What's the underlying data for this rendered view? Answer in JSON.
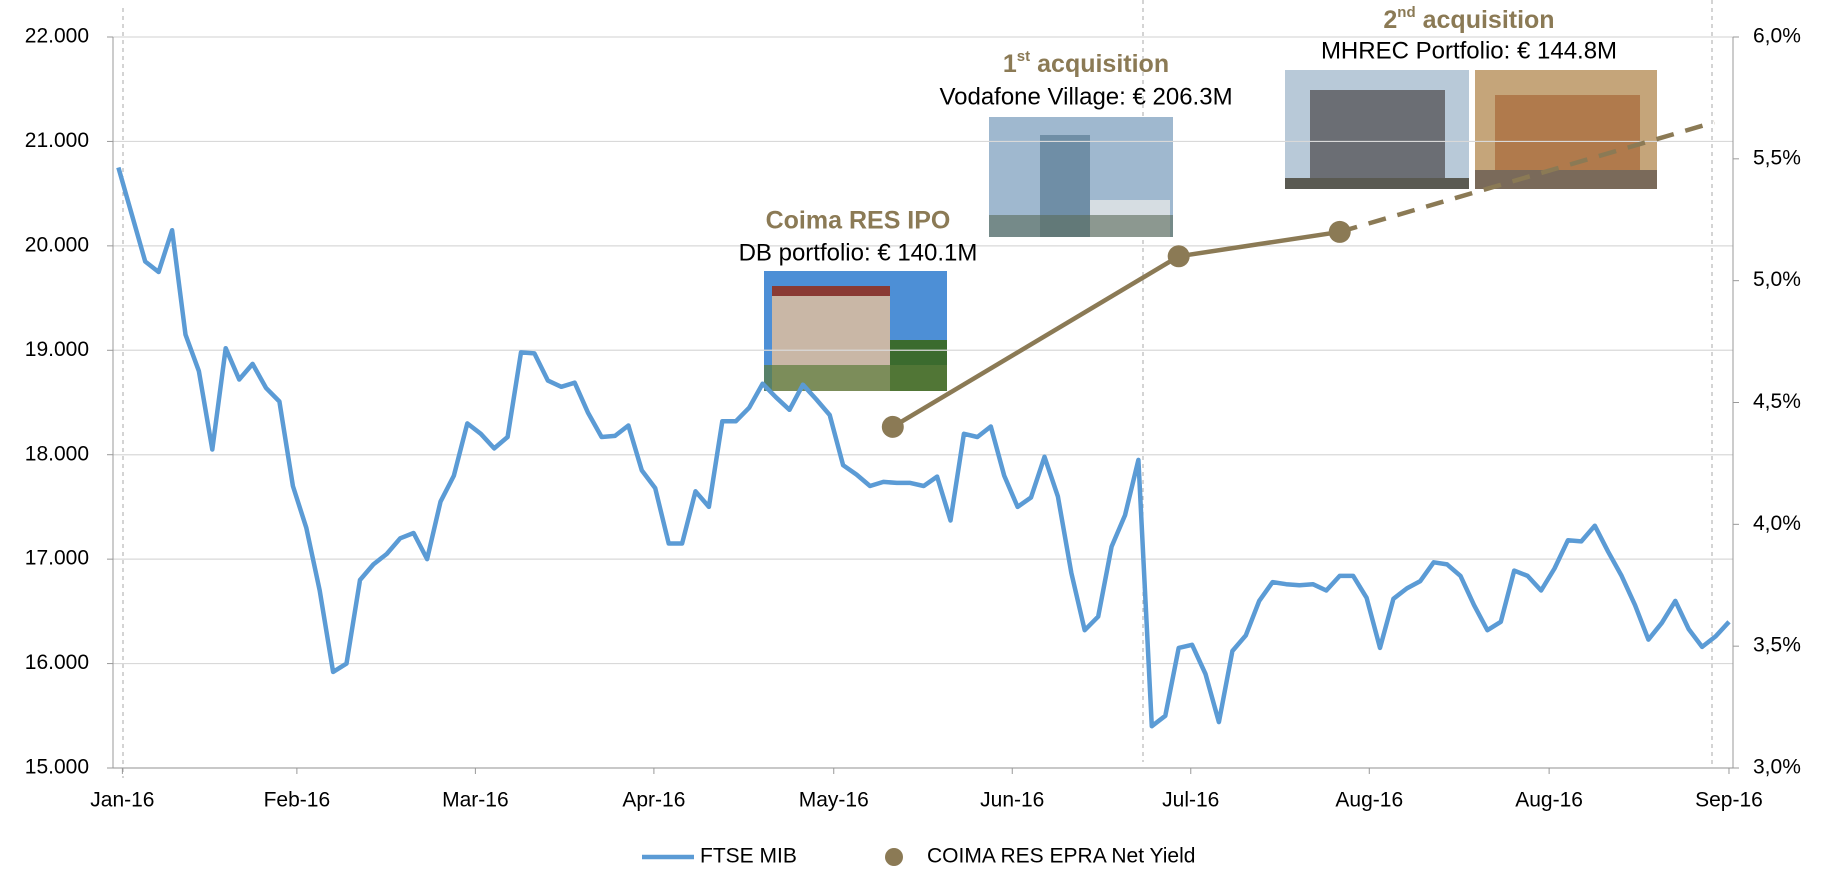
{
  "chart_data": {
    "type": "line",
    "x": [
      0,
      1,
      2,
      3,
      4,
      5,
      6,
      7,
      8,
      9,
      10,
      11,
      12,
      13,
      14,
      15,
      16,
      17,
      18,
      19,
      20,
      21,
      22,
      23,
      24,
      25,
      26,
      27,
      28,
      29,
      30,
      31,
      32,
      33,
      34,
      35,
      36,
      37,
      38,
      39,
      40,
      41,
      42,
      43,
      44,
      45,
      46,
      47,
      48,
      49,
      50,
      51,
      52,
      53,
      54,
      55,
      56,
      57,
      58,
      59,
      60,
      61,
      62,
      63,
      64,
      65,
      66,
      67,
      68,
      69,
      70,
      71,
      72,
      73,
      74,
      75,
      76,
      77,
      78,
      79,
      80,
      81,
      82,
      83,
      84,
      85,
      86,
      87,
      88,
      89,
      90,
      91,
      92,
      93,
      94,
      95,
      96,
      97,
      98,
      99,
      100,
      101,
      102,
      103,
      104,
      105,
      106,
      107,
      108,
      109,
      110,
      111,
      112,
      113,
      114,
      115,
      116,
      117,
      118,
      119,
      120
    ],
    "xlim": [
      -0.4,
      120.3
    ],
    "xticks": [
      {
        "value": 0.3,
        "label": "Jan-16"
      },
      {
        "value": 13.3,
        "label": "Feb-16"
      },
      {
        "value": 26.6,
        "label": "Mar-16"
      },
      {
        "value": 39.9,
        "label": "Apr-16"
      },
      {
        "value": 53.3,
        "label": "May-16"
      },
      {
        "value": 66.6,
        "label": "Jun-16"
      },
      {
        "value": 79.9,
        "label": "Jul-16"
      },
      {
        "value": 93.2,
        "label": "Aug-16"
      },
      {
        "value": 106.6,
        "label": "Aug-16"
      },
      {
        "value": 120,
        "label": "Sep-16"
      }
    ],
    "ylim": [
      15000,
      22000
    ],
    "yticks": [
      {
        "value": 15000,
        "label": "15.000"
      },
      {
        "value": 16000,
        "label": "16.000"
      },
      {
        "value": 17000,
        "label": "17.000"
      },
      {
        "value": 18000,
        "label": "18.000"
      },
      {
        "value": 19000,
        "label": "19.000"
      },
      {
        "value": 20000,
        "label": "20.000"
      },
      {
        "value": 21000,
        "label": "21.000"
      },
      {
        "value": 22000,
        "label": "22.000"
      }
    ],
    "y2lim": [
      3.0,
      6.0
    ],
    "y2ticks": [
      {
        "value": 3.0,
        "label": "3,0%"
      },
      {
        "value": 3.5,
        "label": "3,5%"
      },
      {
        "value": 4.0,
        "label": "4,0%"
      },
      {
        "value": 4.5,
        "label": "4,5%"
      },
      {
        "value": 5.0,
        "label": "5,0%"
      },
      {
        "value": 5.5,
        "label": "5,5%"
      },
      {
        "value": 6.0,
        "label": "6,0%"
      }
    ],
    "grid": true,
    "legend": "bottom",
    "series": [
      {
        "name": "FTSE MIB",
        "color": "#5b9bd5",
        "values": [
          20750,
          20300,
          19850,
          19750,
          20150,
          19150,
          18800,
          18050,
          19020,
          18720,
          18870,
          18640,
          18510,
          17700,
          17300,
          16700,
          15920,
          16000,
          16800,
          16950,
          17050,
          17200,
          17250,
          17000,
          17550,
          17800,
          18300,
          18200,
          18060,
          18170,
          18980,
          18970,
          18710,
          18650,
          18690,
          18400,
          18170,
          18180,
          18280,
          17850,
          17680,
          17150,
          17150,
          17650,
          17500,
          18320,
          18320,
          18450,
          18680,
          18550,
          18430,
          18670,
          18530,
          18380,
          17900,
          17810,
          17700,
          17740,
          17730,
          17730,
          17700,
          17790,
          17370,
          18200,
          18170,
          18270,
          17800,
          17500,
          17590,
          17980,
          17600,
          16870,
          16320,
          16450,
          17120,
          17420,
          17950,
          15400,
          15500,
          16150,
          16180,
          15900,
          15440,
          16120,
          16270,
          16600,
          16780,
          16760,
          16750,
          16760,
          16700,
          16840,
          16840,
          16630,
          16150,
          16620,
          16720,
          16790,
          16970,
          16950,
          16840,
          16560,
          16320,
          16400,
          16890,
          16840,
          16700,
          16910,
          17180,
          17170,
          17320,
          17070,
          16840,
          16560,
          16230,
          16390,
          16600,
          16330,
          16160,
          16260,
          16400
        ]
      },
      {
        "name": "COIMA RES EPRA Net Yield",
        "color": "#8b7a55",
        "axis": "y2",
        "x": [
          57.7,
          79,
          91,
          118.9
        ],
        "values": [
          4.4,
          5.1,
          5.2,
          5.65
        ],
        "markers": [
          true,
          true,
          true,
          false
        ],
        "dashed_last_segment": true
      }
    ],
    "annotations": [
      {
        "title": "Coima RES IPO",
        "text": "DB portfolio: € 140.1M"
      },
      {
        "title_number": "1",
        "title_sup": "st",
        "title_text": "acquisition",
        "text": "Vodafone Village: € 206.3M"
      },
      {
        "title_number": "2",
        "title_sup": "nd",
        "title_text": "acquisition",
        "text": "MHREC Portfolio: € 144.8M"
      }
    ]
  }
}
